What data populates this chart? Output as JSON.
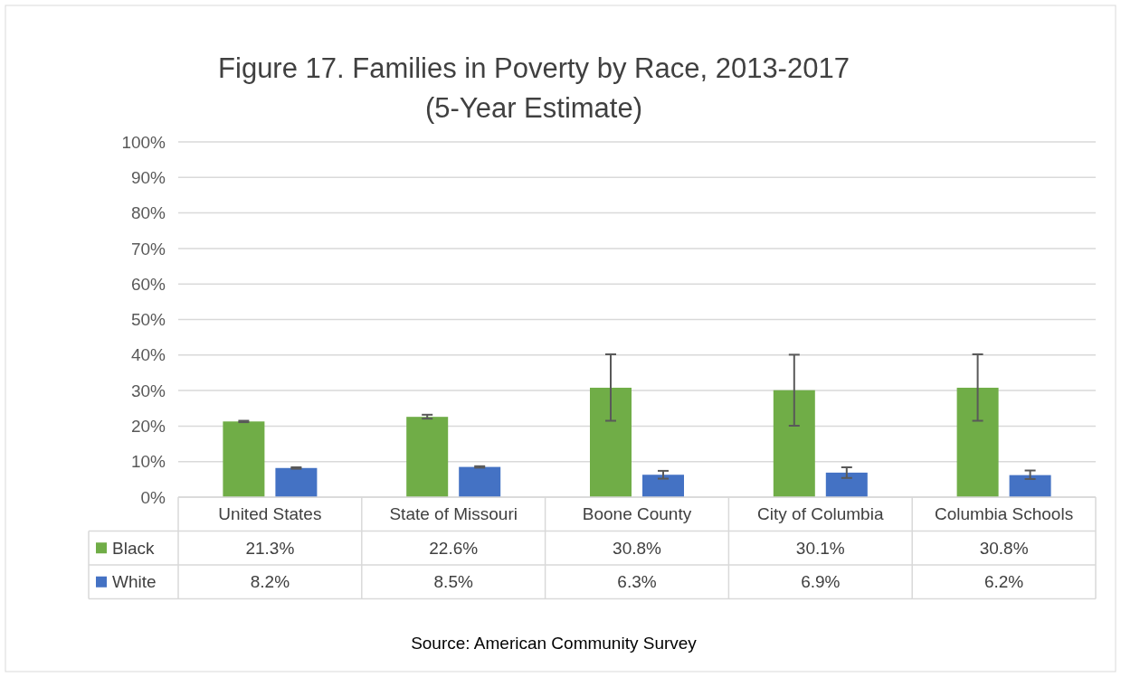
{
  "chart_data": {
    "type": "bar",
    "title": "Figure 17. Families in Poverty by Race, 2013-2017",
    "subtitle": "(5-Year Estimate)",
    "categories": [
      "United States",
      "State of Missouri",
      "Boone County",
      "City of Columbia",
      "Columbia Schools"
    ],
    "series": [
      {
        "name": "Black",
        "color": "#70ad47",
        "values": [
          21.3,
          22.6,
          30.8,
          30.1,
          30.8
        ],
        "value_labels": [
          "21.3%",
          "22.6%",
          "30.8%",
          "30.1%",
          "30.8%"
        ],
        "errors": [
          [
            21.1,
            21.5
          ],
          [
            22.1,
            23.2
          ],
          [
            21.5,
            40.2
          ],
          [
            20.1,
            40.1
          ],
          [
            21.5,
            40.2
          ]
        ]
      },
      {
        "name": "White",
        "color": "#4472c4",
        "values": [
          8.2,
          8.5,
          6.3,
          6.9,
          6.2
        ],
        "value_labels": [
          "8.2%",
          "8.5%",
          "6.3%",
          "6.9%",
          "6.2%"
        ],
        "errors": [
          [
            8.0,
            8.4
          ],
          [
            8.3,
            8.7
          ],
          [
            5.2,
            7.4
          ],
          [
            5.4,
            8.4
          ],
          [
            5.1,
            7.5
          ]
        ]
      }
    ],
    "ylim": [
      0,
      100
    ],
    "yticks": [
      {
        "value": 0,
        "label": "0%"
      },
      {
        "value": 10,
        "label": "10%"
      },
      {
        "value": 20,
        "label": "20%"
      },
      {
        "value": 30,
        "label": "30%"
      },
      {
        "value": 40,
        "label": "40%"
      },
      {
        "value": 50,
        "label": "50%"
      },
      {
        "value": 60,
        "label": "60%"
      },
      {
        "value": 70,
        "label": "70%"
      },
      {
        "value": 80,
        "label": "80%"
      },
      {
        "value": 90,
        "label": "90%"
      },
      {
        "value": 100,
        "label": "100%"
      }
    ],
    "grid": "y",
    "legend": "bottom",
    "annotations": [
      "Source: American Community Survey"
    ]
  }
}
